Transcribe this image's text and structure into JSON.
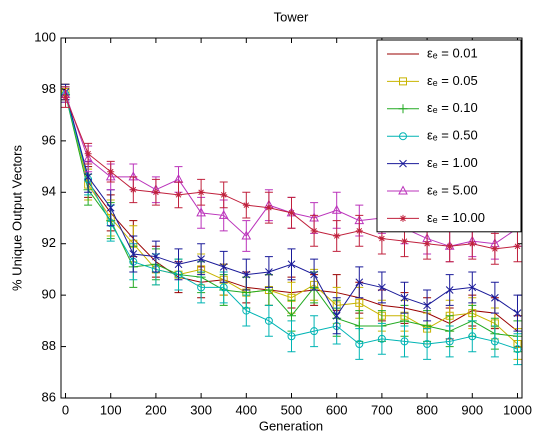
{
  "chart_data": {
    "type": "line",
    "title": "Tower",
    "x_label": "Generation",
    "y_label": "% Unique Output Vectors",
    "x": [
      0,
      50,
      100,
      150,
      200,
      250,
      300,
      350,
      400,
      450,
      500,
      550,
      600,
      650,
      700,
      750,
      800,
      850,
      900,
      950,
      1000
    ],
    "xlim": [
      -10,
      1010
    ],
    "xticks": [
      0,
      100,
      200,
      300,
      400,
      500,
      600,
      700,
      800,
      900,
      1000
    ],
    "ylim": [
      86,
      100
    ],
    "yticks": [
      86,
      88,
      90,
      92,
      94,
      96,
      98,
      100
    ],
    "legend": "northeast",
    "series": [
      {
        "name": "εₑ = 0.01",
        "color": "#990000",
        "marker": "none",
        "values": [
          97.9,
          94.4,
          93.2,
          92.2,
          91.3,
          90.7,
          90.5,
          90.6,
          90.3,
          90.2,
          90.1,
          90.2,
          90.1,
          89.9,
          89.6,
          89.5,
          89.3,
          88.9,
          89.4,
          89.3,
          88.6
        ],
        "errors": [
          0.3,
          0.6,
          0.7,
          0.7,
          0.6,
          0.6,
          0.6,
          0.6,
          0.6,
          0.6,
          0.6,
          0.6,
          0.7,
          0.6,
          0.6,
          0.6,
          0.6,
          0.6,
          0.6,
          0.6,
          0.6
        ]
      },
      {
        "name": "εₑ = 0.05",
        "color": "#c8b400",
        "marker": "square",
        "values": [
          97.9,
          94.3,
          93.0,
          92.0,
          91.0,
          90.8,
          91.0,
          90.6,
          90.1,
          90.2,
          89.9,
          90.4,
          89.6,
          89.7,
          89.2,
          89.2,
          88.7,
          89.2,
          89.3,
          88.9,
          88.1
        ],
        "errors": [
          0.3,
          0.6,
          0.7,
          0.7,
          0.6,
          0.6,
          0.6,
          0.6,
          0.6,
          0.6,
          0.6,
          0.6,
          0.7,
          0.6,
          0.6,
          0.6,
          0.6,
          0.6,
          0.6,
          0.6,
          0.6
        ]
      },
      {
        "name": "εₑ = 0.10",
        "color": "#22aa22",
        "marker": "plus",
        "values": [
          97.8,
          94.1,
          92.9,
          91.1,
          91.2,
          90.8,
          90.7,
          90.2,
          90.1,
          90.2,
          89.2,
          90.3,
          89.1,
          88.8,
          88.8,
          89.0,
          88.8,
          88.6,
          89.0,
          88.5,
          88.4
        ],
        "errors": [
          0.3,
          0.6,
          0.7,
          0.8,
          0.6,
          0.6,
          0.6,
          0.6,
          0.6,
          0.6,
          0.6,
          0.6,
          0.7,
          0.6,
          0.6,
          0.6,
          0.6,
          0.6,
          0.6,
          0.6,
          0.6
        ]
      },
      {
        "name": "εₑ = 0.50",
        "color": "#00b4b4",
        "marker": "circle",
        "values": [
          97.8,
          94.5,
          92.8,
          91.3,
          91.0,
          90.8,
          90.3,
          90.3,
          89.4,
          89.0,
          88.4,
          88.6,
          88.8,
          88.1,
          88.3,
          88.2,
          88.1,
          88.2,
          88.4,
          88.2,
          87.9
        ],
        "errors": [
          0.3,
          0.6,
          0.7,
          0.7,
          0.6,
          0.6,
          0.6,
          0.6,
          0.6,
          0.6,
          0.6,
          0.6,
          0.7,
          0.6,
          0.6,
          0.6,
          0.6,
          0.6,
          0.6,
          0.6,
          0.6
        ]
      },
      {
        "name": "εₑ = 1.00",
        "color": "#1a1a99",
        "marker": "x",
        "values": [
          97.9,
          94.6,
          93.4,
          91.6,
          91.5,
          91.2,
          91.4,
          91.1,
          90.8,
          90.9,
          91.2,
          90.8,
          89.2,
          90.5,
          90.3,
          89.9,
          89.6,
          90.2,
          90.3,
          89.9,
          89.3
        ],
        "errors": [
          0.3,
          0.6,
          0.7,
          0.7,
          0.6,
          0.6,
          0.6,
          0.6,
          0.6,
          0.6,
          0.6,
          0.6,
          0.7,
          0.6,
          0.6,
          0.6,
          0.6,
          0.6,
          0.6,
          0.6,
          0.7
        ]
      },
      {
        "name": "εₑ = 5.00",
        "color": "#bb33bb",
        "marker": "triangle",
        "values": [
          97.8,
          95.3,
          94.6,
          94.6,
          94.1,
          94.5,
          93.2,
          93.1,
          92.3,
          93.5,
          93.2,
          93.0,
          93.3,
          92.9,
          93.0,
          92.6,
          92.2,
          91.9,
          92.1,
          92.0,
          92.6
        ],
        "errors": [
          0.3,
          0.5,
          0.5,
          0.5,
          0.5,
          0.5,
          0.6,
          0.6,
          0.6,
          0.6,
          0.6,
          0.6,
          0.7,
          0.6,
          0.6,
          0.6,
          0.6,
          0.6,
          0.6,
          0.6,
          0.7
        ]
      },
      {
        "name": "εₑ = 10.00",
        "color": "#c0203c",
        "marker": "asterisk",
        "values": [
          97.7,
          95.5,
          94.8,
          94.1,
          94.0,
          93.9,
          94.0,
          93.9,
          93.5,
          93.4,
          93.2,
          92.5,
          92.3,
          92.5,
          92.2,
          92.1,
          92.0,
          91.9,
          92.0,
          91.8,
          91.9
        ],
        "errors": [
          0.4,
          0.4,
          0.4,
          0.5,
          0.5,
          0.5,
          0.5,
          0.5,
          0.5,
          0.6,
          0.6,
          0.6,
          0.6,
          0.6,
          0.6,
          0.6,
          0.6,
          0.6,
          0.6,
          0.6,
          0.6
        ]
      }
    ]
  }
}
